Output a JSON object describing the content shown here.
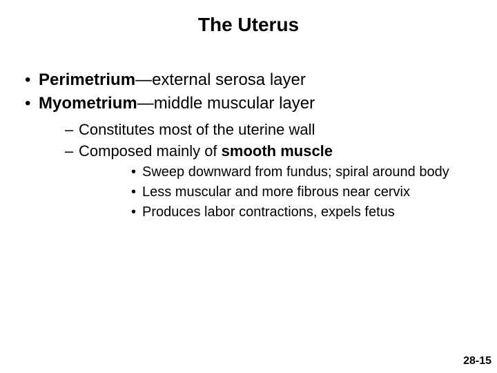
{
  "title": "The Uterus",
  "title_fontsize": 28,
  "bullets": {
    "level1": [
      {
        "bold": "Perimetrium",
        "rest": "—external serosa layer"
      },
      {
        "bold": "Myometrium",
        "rest": "—middle muscular layer"
      }
    ],
    "level1_fontsize": 24,
    "level2": [
      {
        "text": "Constitutes most of the uterine wall"
      },
      {
        "pre": "Composed mainly of ",
        "bold": "smooth muscle"
      }
    ],
    "level2_fontsize": 22,
    "level3": [
      "Sweep downward from fundus; spiral around body",
      "Less muscular and more fibrous near cervix",
      "Produces labor contractions, expels fetus"
    ],
    "level3_fontsize": 20
  },
  "page_number": "28-15",
  "page_number_fontsize": 16,
  "colors": {
    "background": "#ffffff",
    "text": "#000000"
  }
}
